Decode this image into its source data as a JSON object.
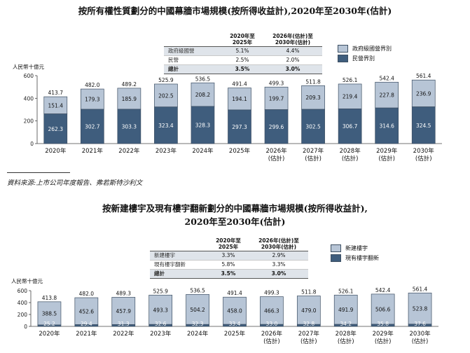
{
  "chart1": {
    "title": "按所有權性質劃分的中國幕牆市場規模(按所得收益計),2020年至2030年(估計)",
    "unit": "人民幣十億元",
    "cagr_headers": [
      "2020年至\n2025年",
      "2026年(估計)至\n2030年(估計)"
    ],
    "cagr_rows": [
      {
        "label": "政府級國營",
        "a": "5.1%",
        "b": "4.4%"
      },
      {
        "label": "民營",
        "a": "2.5%",
        "b": "2.0%"
      },
      {
        "label": "總計",
        "a": "3.5%",
        "b": "3.0%"
      }
    ],
    "source": "資料來源:上市公司年度報告、弗若斯特沙利文"
  },
  "chart2": {
    "title_line1": "按新建樓宇及現有樓宇翻新劃分的中國幕牆市場規模(按所得收益計),",
    "title_line2": "2020年至2030年(估計)",
    "unit": "人民幣十億元",
    "cagr_headers": [
      "2020年至\n2025年",
      "2026年(估計)至\n2030年(估計)"
    ],
    "cagr_rows": [
      {
        "label": "新建樓宇",
        "a": "3.3%",
        "b": "2.9%"
      },
      {
        "label": "現有樓宇翻新",
        "a": "5.8%",
        "b": "3.3%"
      },
      {
        "label": "總計",
        "a": "3.5%",
        "b": "3.0%"
      }
    ]
  },
  "colors": {
    "dark": "#3f5d7d",
    "light": "#b7c5d6",
    "shade": "#dfe4ea"
  },
  "chart_data": [
    {
      "type": "bar",
      "stacked": true,
      "categories": [
        "2020年",
        "2021年",
        "2022年",
        "2023年",
        "2024年",
        "2025年",
        "2026年\n(估計)",
        "2027年\n(估計)",
        "2028年\n(估計)",
        "2029年\n(估計)",
        "2030年\n(估計)"
      ],
      "series": [
        {
          "name": "民營界別",
          "color": "#3f5d7d",
          "values": [
            262.3,
            302.7,
            303.3,
            323.4,
            328.3,
            297.3,
            299.6,
            302.5,
            306.7,
            314.6,
            324.5
          ]
        },
        {
          "name": "政府級國營界別",
          "color": "#b7c5d6",
          "values": [
            151.4,
            179.3,
            185.9,
            202.5,
            208.2,
            194.1,
            199.7,
            209.3,
            219.4,
            227.8,
            236.9
          ]
        }
      ],
      "totals": [
        413.7,
        482.0,
        489.2,
        525.9,
        536.5,
        491.4,
        499.3,
        511.8,
        526.1,
        542.4,
        561.4
      ],
      "ylabel": "人民幣十億元",
      "yticks": [
        0,
        200,
        400,
        600
      ],
      "ylim": [
        0,
        600
      ],
      "legend": "top-right"
    },
    {
      "type": "bar",
      "stacked": true,
      "categories": [
        "2020年",
        "2021年",
        "2022年",
        "2023年",
        "2024年",
        "2025年",
        "2026年\n(估計)",
        "2027年\n(估計)",
        "2028年\n(估計)",
        "2029年\n(估計)",
        "2030年\n(估計)"
      ],
      "series": [
        {
          "name": "現有樓宇翻新",
          "color": "#3f5d7d",
          "values": [
            25.2,
            29.4,
            31.3,
            32.6,
            32.3,
            33.4,
            33.0,
            32.8,
            34.2,
            35.8,
            37.6
          ]
        },
        {
          "name": "新建樓宇",
          "color": "#b7c5d6",
          "values": [
            388.5,
            452.6,
            457.9,
            493.3,
            504.2,
            458.0,
            466.3,
            479.0,
            491.9,
            506.6,
            523.8
          ]
        }
      ],
      "totals": [
        413.8,
        482.0,
        489.3,
        525.9,
        536.5,
        491.4,
        499.3,
        511.8,
        526.1,
        542.4,
        561.4
      ],
      "ylabel": "人民幣十億元",
      "yticks": [
        0,
        200,
        400,
        600
      ],
      "ylim": [
        0,
        600
      ],
      "legend": "top-right"
    }
  ]
}
